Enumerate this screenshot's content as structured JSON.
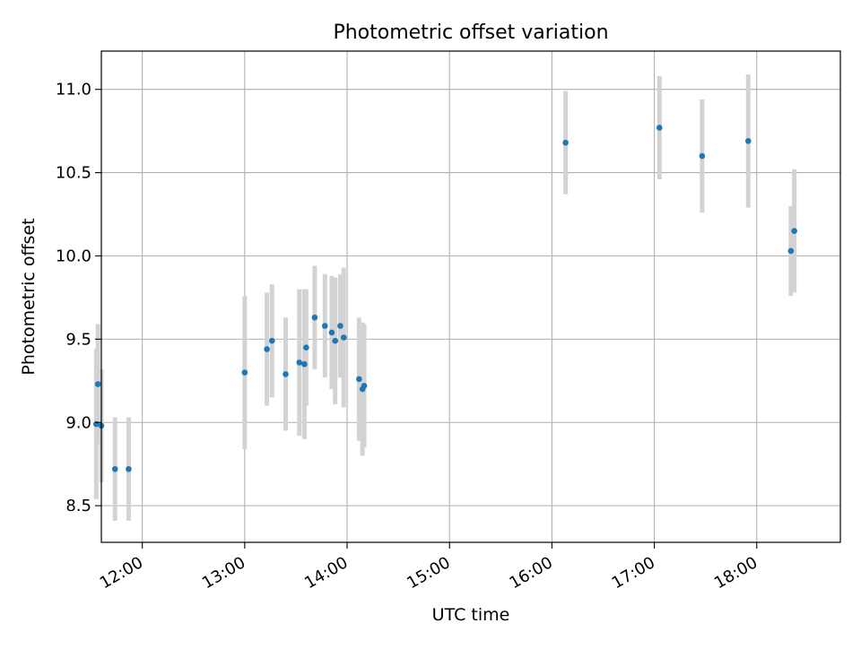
{
  "chart_data": {
    "type": "scatter",
    "title": "Photometric offset variation",
    "xlabel": "UTC time",
    "ylabel": "Photometric offset",
    "x_unit": "UTC time (HH:MM)",
    "xlim": [
      "11:36",
      "18:49"
    ],
    "ylim": [
      8.28,
      11.23
    ],
    "x_ticks": [
      "12:00",
      "13:00",
      "14:00",
      "15:00",
      "16:00",
      "17:00",
      "18:00"
    ],
    "y_ticks": [
      8.5,
      9.0,
      9.5,
      10.0,
      10.5,
      11.0
    ],
    "grid": true,
    "marker_color": "#1f77b4",
    "errorbar_color": "#d3d3d3",
    "points": [
      {
        "x": "11:33",
        "y": 8.99,
        "err": 0.45
      },
      {
        "x": "11:34",
        "y": 9.23,
        "err": 0.36
      },
      {
        "x": "11:36",
        "y": 8.98,
        "err": 0.34
      },
      {
        "x": "11:44",
        "y": 8.72,
        "err": 0.31
      },
      {
        "x": "11:52",
        "y": 8.72,
        "err": 0.31
      },
      {
        "x": "13:00",
        "y": 9.3,
        "err": 0.46
      },
      {
        "x": "13:13",
        "y": 9.44,
        "err": 0.34
      },
      {
        "x": "13:16",
        "y": 9.49,
        "err": 0.34
      },
      {
        "x": "13:24",
        "y": 9.29,
        "err": 0.34
      },
      {
        "x": "13:32",
        "y": 9.36,
        "err": 0.44
      },
      {
        "x": "13:35",
        "y": 9.35,
        "err": 0.45
      },
      {
        "x": "13:36",
        "y": 9.45,
        "err": 0.35
      },
      {
        "x": "13:41",
        "y": 9.63,
        "err": 0.31
      },
      {
        "x": "13:47",
        "y": 9.58,
        "err": 0.31
      },
      {
        "x": "13:51",
        "y": 9.54,
        "err": 0.34
      },
      {
        "x": "13:53",
        "y": 9.49,
        "err": 0.38
      },
      {
        "x": "13:56",
        "y": 9.58,
        "err": 0.31
      },
      {
        "x": "13:58",
        "y": 9.51,
        "err": 0.42
      },
      {
        "x": "14:07",
        "y": 9.26,
        "err": 0.37
      },
      {
        "x": "14:09",
        "y": 9.2,
        "err": 0.4
      },
      {
        "x": "14:10",
        "y": 9.22,
        "err": 0.37
      },
      {
        "x": "16:08",
        "y": 10.68,
        "err": 0.31
      },
      {
        "x": "17:03",
        "y": 10.77,
        "err": 0.31
      },
      {
        "x": "17:28",
        "y": 10.6,
        "err": 0.34
      },
      {
        "x": "17:55",
        "y": 10.69,
        "err": 0.4
      },
      {
        "x": "18:20",
        "y": 10.03,
        "err": 0.27
      },
      {
        "x": "18:22",
        "y": 10.15,
        "err": 0.37
      }
    ]
  }
}
